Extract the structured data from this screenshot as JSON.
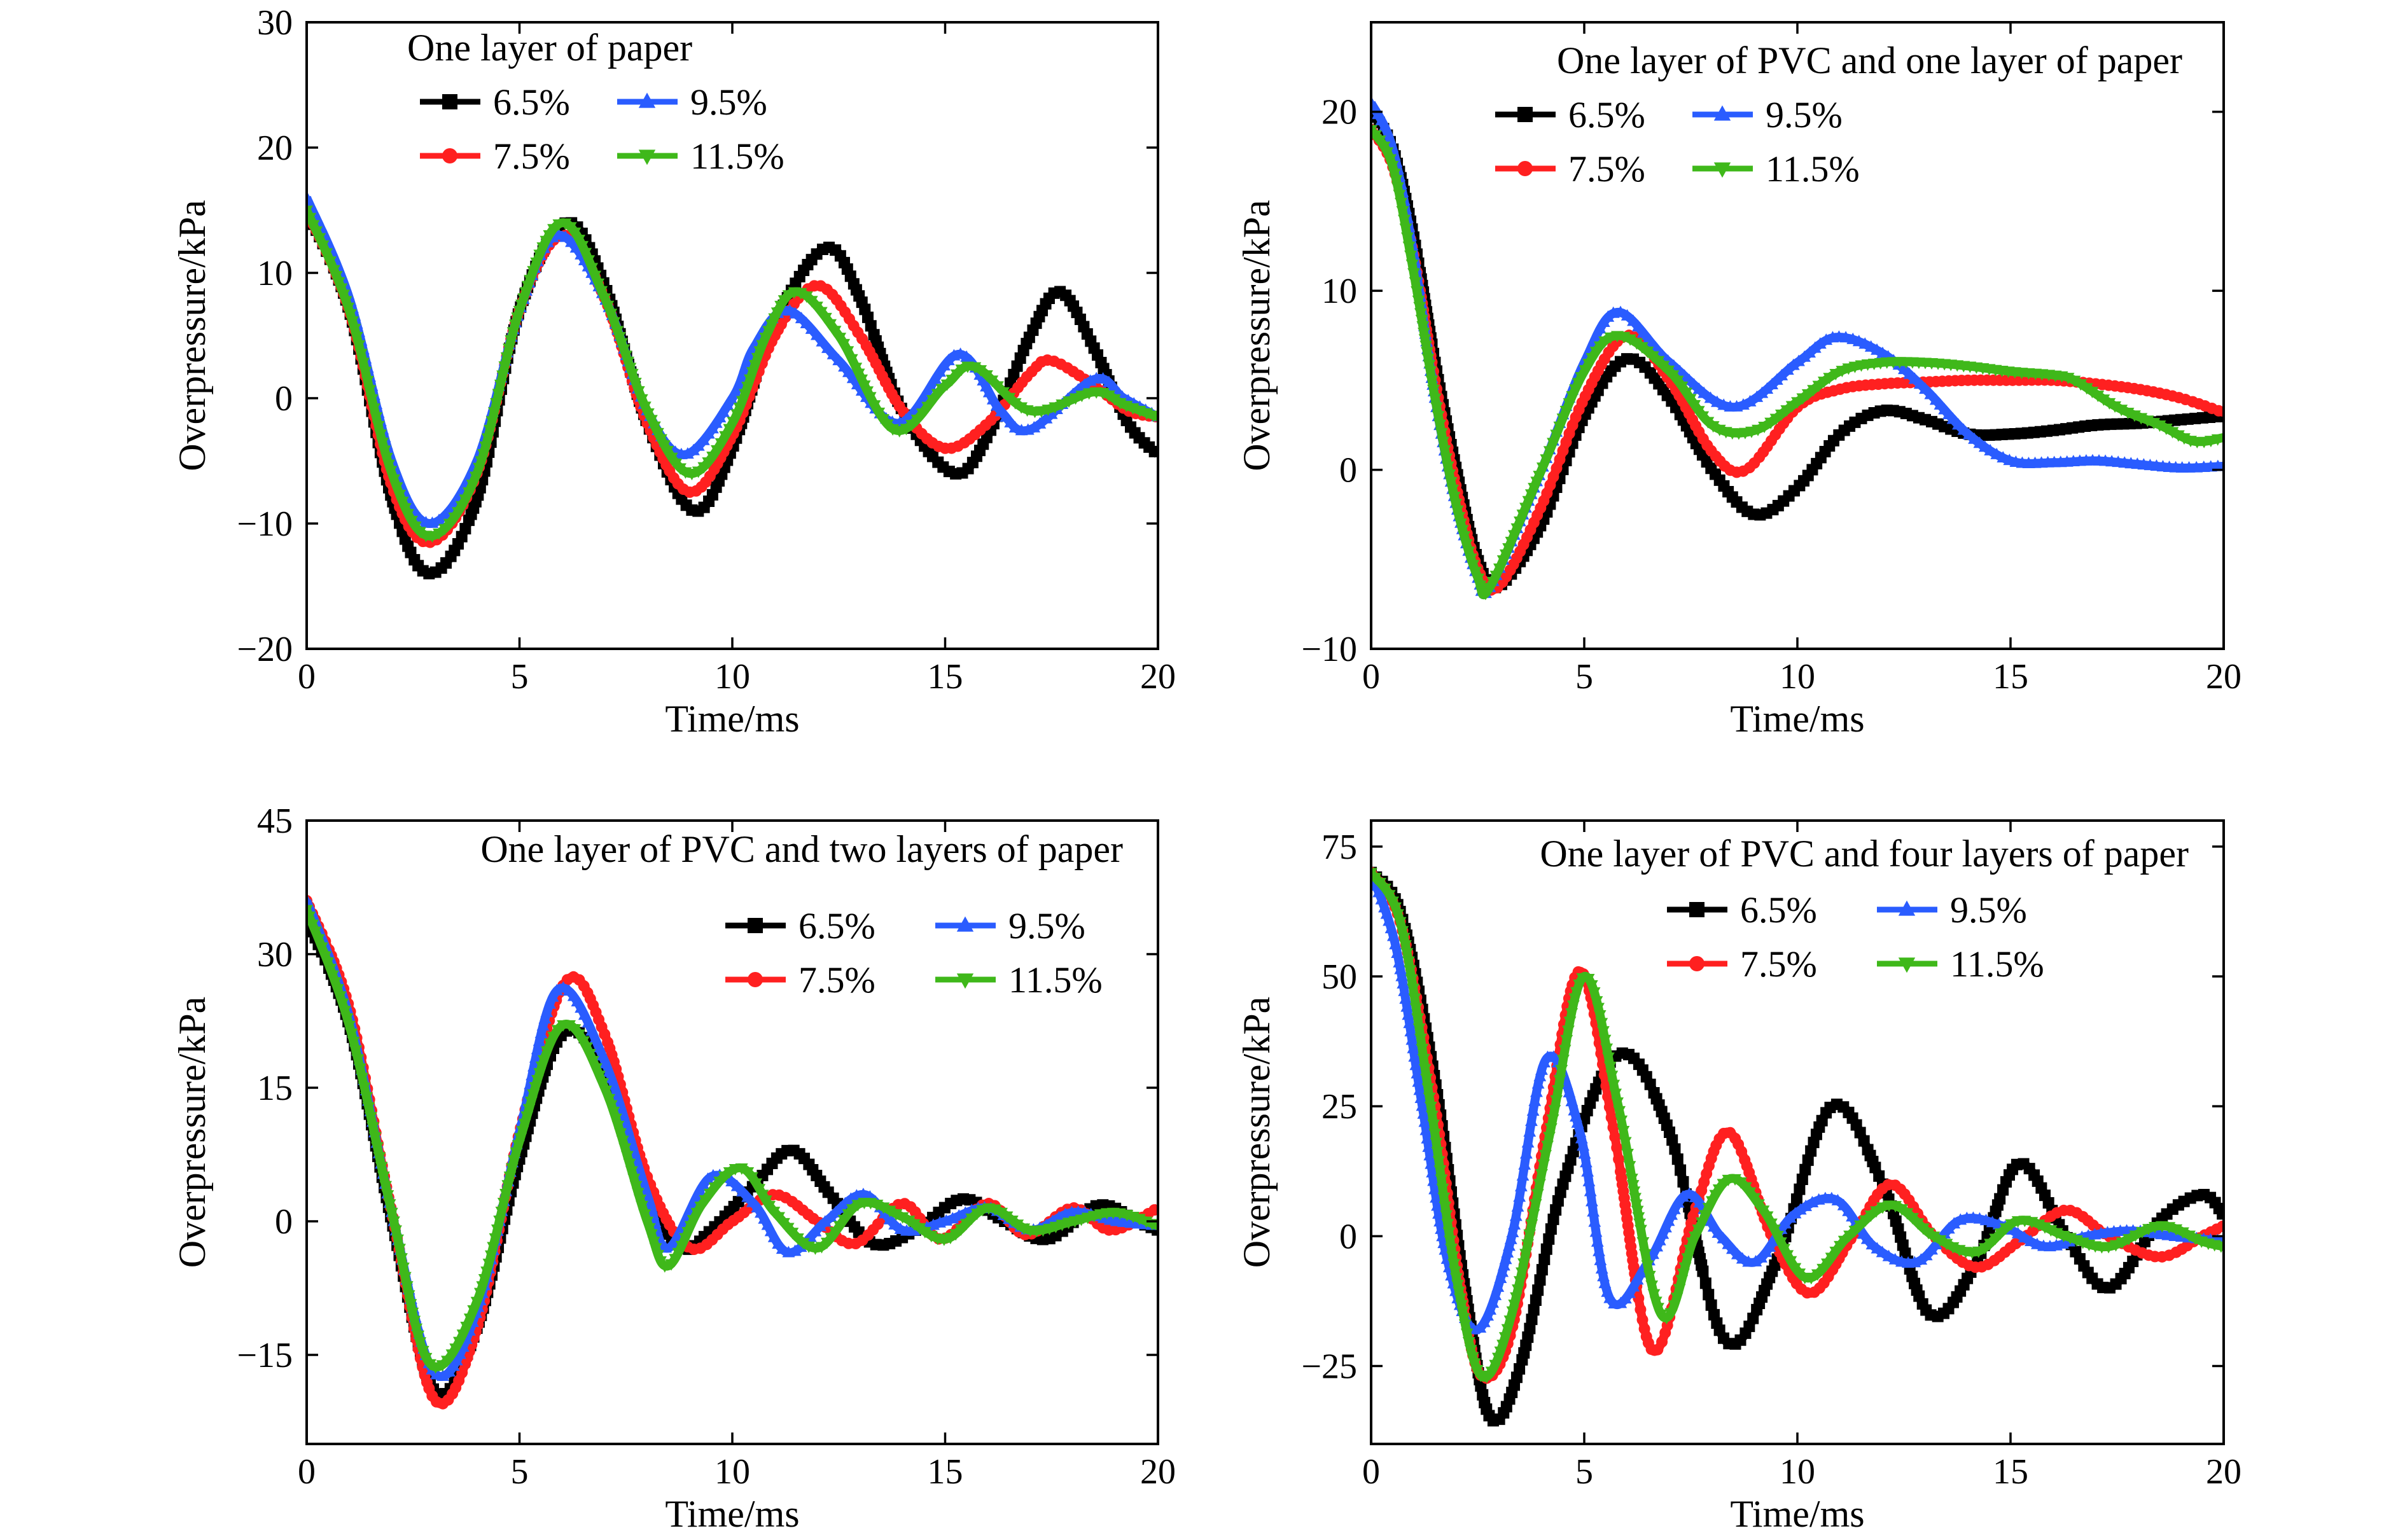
{
  "colors": {
    "6.5%": "#000000",
    "7.5%": "#ff2020",
    "9.5%": "#2a5cff",
    "11.5%": "#3fb81a"
  },
  "chart_data": [
    {
      "type": "line",
      "title": "One layer of paper",
      "xlabel": "Time/ms",
      "ylabel": "Overpressure/kPa",
      "xlim": [
        0,
        20
      ],
      "ylim": [
        -20,
        30
      ],
      "xticks": [
        0,
        5,
        10,
        15,
        20
      ],
      "yticks": [
        -20,
        -10,
        0,
        10,
        20,
        30
      ],
      "legend_position": "top-left",
      "series": [
        {
          "name": "6.5%",
          "marker": "square",
          "x": [
            0,
            1,
            2,
            2.9,
            4,
            5,
            6.1,
            7,
            8,
            9.1,
            10,
            11,
            12.2,
            13,
            14,
            15.2,
            16,
            17,
            17.7,
            18.5,
            19.3,
            20
          ],
          "y": [
            15,
            7,
            -8,
            -14,
            -8,
            7,
            14,
            9,
            -2,
            -9,
            -4,
            6,
            12,
            8,
            -1,
            -6,
            -3,
            5,
            8.5,
            4,
            -2,
            -4.5
          ]
        },
        {
          "name": "7.5%",
          "marker": "circle",
          "x": [
            0,
            1,
            2,
            2.9,
            4,
            5,
            6.0,
            7,
            8,
            9.0,
            10,
            11,
            12.0,
            13,
            14,
            15.0,
            16,
            17,
            17.5,
            18.5,
            19.3,
            20
          ],
          "y": [
            15,
            7,
            -7,
            -11.5,
            -6,
            7,
            13,
            8,
            -2,
            -7.5,
            -3,
            5,
            9,
            5,
            -1,
            -4,
            -2,
            2,
            3,
            1,
            -1,
            -1.5
          ]
        },
        {
          "name": "9.5%",
          "marker": "triangle-up",
          "x": [
            0,
            1,
            2,
            2.9,
            4,
            5,
            5.9,
            7,
            8,
            8.9,
            10,
            10.5,
            11.3,
            12.5,
            13.9,
            15.3,
            16.3,
            17.0,
            18.5,
            19.2,
            20
          ],
          "y": [
            16,
            8,
            -5,
            -10,
            -5,
            7,
            13,
            8,
            -1,
            -4.5,
            0,
            4,
            7,
            3,
            -2,
            3.5,
            -1,
            -2.5,
            1.5,
            0,
            -1.5
          ]
        },
        {
          "name": "11.5%",
          "marker": "triangle-down",
          "x": [
            0,
            1,
            2,
            2.9,
            4,
            5,
            6.0,
            7,
            8,
            9.0,
            10,
            10.8,
            11.5,
            12.5,
            13.8,
            15.0,
            15.7,
            17.0,
            18.5,
            19.2,
            20
          ],
          "y": [
            15,
            7,
            -6,
            -11,
            -6,
            7,
            14,
            8,
            -1,
            -6,
            -2,
            5,
            8.5,
            5,
            -2.5,
            1,
            2.5,
            -1,
            0.5,
            -0.5,
            -1.5
          ]
        }
      ]
    },
    {
      "type": "line",
      "title": "One layer of PVC and one layer of paper",
      "xlabel": "Time/ms",
      "ylabel": "Overpressure/kPa",
      "xlim": [
        0,
        20
      ],
      "ylim": [
        -10,
        25
      ],
      "xticks": [
        0,
        5,
        10,
        15,
        20
      ],
      "yticks": [
        -10,
        0,
        10,
        20
      ],
      "legend_position": "top-right",
      "series": [
        {
          "name": "6.5%",
          "marker": "square",
          "x": [
            0,
            0.5,
            1,
            1.5,
            2,
            2.5,
            3,
            4,
            5,
            6,
            7,
            8,
            9,
            10,
            11,
            12,
            13,
            14,
            15,
            16,
            17,
            18,
            19,
            20
          ],
          "y": [
            20,
            18,
            13,
            6,
            0,
            -5,
            -6.5,
            -3,
            3,
            6.2,
            4,
            0,
            -2.5,
            -1,
            2,
            3.3,
            2.8,
            2,
            2,
            2.2,
            2.5,
            2.6,
            2.8,
            3
          ]
        },
        {
          "name": "7.5%",
          "marker": "circle",
          "x": [
            0,
            0.5,
            1,
            1.5,
            2,
            2.5,
            3,
            4,
            5,
            6,
            7,
            8,
            8.8,
            10,
            11,
            12,
            13,
            14,
            15,
            16,
            17,
            18,
            19,
            20
          ],
          "y": [
            19,
            17,
            12,
            5,
            -1,
            -5.5,
            -6.5,
            -2,
            4,
            7.5,
            5,
            1,
            0,
            3.5,
            4.5,
            4.8,
            4.9,
            5,
            5,
            5,
            4.8,
            4.5,
            4,
            3.2
          ]
        },
        {
          "name": "9.5%",
          "marker": "triangle-up",
          "x": [
            0,
            0.5,
            1,
            1.5,
            2,
            2.5,
            2.8,
            4,
            5,
            5.8,
            7,
            8.5,
            10,
            10.9,
            12,
            13,
            14,
            15,
            16,
            17,
            18,
            19,
            20
          ],
          "y": [
            20.5,
            18,
            12,
            4,
            -2,
            -6,
            -6.5,
            0,
            6,
            8.8,
            6,
            3.5,
            6,
            7.4,
            6.5,
            4.5,
            2,
            0.5,
            0.4,
            0.5,
            0.3,
            0.1,
            0.2
          ]
        },
        {
          "name": "11.5%",
          "marker": "triangle-down",
          "x": [
            0,
            0.5,
            1,
            1.5,
            2,
            2.5,
            2.8,
            4,
            5,
            5.8,
            7,
            8,
            9,
            10,
            11,
            12,
            13,
            14,
            15,
            16,
            16.5,
            17.5,
            18.5,
            19.3,
            20
          ],
          "y": [
            19,
            17,
            11,
            4,
            -2,
            -6,
            -6.5,
            0,
            5.5,
            7.5,
            5.5,
            2.5,
            2.2,
            3.8,
            5.5,
            6,
            6,
            5.8,
            5.5,
            5.3,
            5,
            3.5,
            2.5,
            1.6,
            1.8
          ]
        }
      ]
    },
    {
      "type": "line",
      "title": "One layer of PVC and two layers of paper",
      "xlabel": "Time/ms",
      "ylabel": "Overpressure/kPa",
      "xlim": [
        0,
        20
      ],
      "ylim": [
        -25,
        45
      ],
      "xticks": [
        0,
        5,
        10,
        15,
        20
      ],
      "yticks": [
        -15,
        0,
        15,
        30,
        45
      ],
      "legend_position": "top-right",
      "series": [
        {
          "name": "6.5%",
          "marker": "square",
          "x": [
            0,
            1,
            2,
            3,
            4,
            5,
            6,
            7,
            8,
            8.8,
            9.5,
            10.5,
            11.4,
            12.3,
            13.3,
            14.3,
            15.4,
            16.4,
            17.4,
            18.6,
            19.5,
            20
          ],
          "y": [
            34,
            22,
            0,
            -19,
            -12,
            7,
            21,
            17,
            3,
            -3,
            -1,
            4,
            8,
            3,
            -2.5,
            -1,
            2.5,
            0,
            -2,
            1.8,
            0,
            -1
          ]
        },
        {
          "name": "7.5%",
          "marker": "circle",
          "x": [
            0,
            1,
            2,
            3,
            4,
            5,
            6.1,
            7,
            8,
            9.0,
            10.0,
            11,
            12,
            12.9,
            14,
            14.9,
            16.0,
            16.9,
            18.0,
            18.9,
            20
          ],
          "y": [
            36,
            24,
            1,
            -20,
            -12,
            10,
            27,
            21,
            5,
            -3,
            0,
            3,
            0,
            -2.5,
            2,
            -2,
            2,
            -1.5,
            1.5,
            -1,
            1.5
          ]
        },
        {
          "name": "9.5%",
          "marker": "triangle-up",
          "x": [
            0,
            1,
            2,
            3,
            4,
            5,
            5.9,
            7,
            8,
            8.5,
            9.5,
            10.5,
            11.3,
            12.2,
            13.1,
            14.0,
            15.0,
            16.0,
            17.0,
            18.0,
            19.0,
            20
          ],
          "y": [
            36,
            23,
            1,
            -17,
            -10,
            10,
            26,
            18,
            3,
            -3,
            5,
            2,
            -3.5,
            0,
            3,
            -1,
            0,
            1.5,
            -1,
            1,
            0,
            -0.5
          ]
        },
        {
          "name": "11.5%",
          "marker": "triangle-down",
          "x": [
            0,
            1,
            2,
            2.9,
            4,
            5,
            6.0,
            7,
            8,
            8.5,
            9.3,
            10.2,
            11.0,
            12.0,
            13.0,
            14.0,
            15.0,
            16.0,
            17.0,
            18.0,
            19.0,
            20
          ],
          "y": [
            35,
            22,
            1,
            -16,
            -9,
            9,
            22,
            15,
            0,
            -5,
            2,
            6,
            1,
            -3,
            2,
            0.5,
            -2,
            1.5,
            -1,
            0,
            1,
            -0.5
          ]
        }
      ]
    },
    {
      "type": "line",
      "title": "One layer of PVC and four layers of paper",
      "xlabel": "Time/ms",
      "ylabel": "Overpressure/kPa",
      "xlim": [
        0,
        20
      ],
      "ylim": [
        -40,
        80
      ],
      "xticks": [
        0,
        5,
        10,
        15,
        20
      ],
      "yticks": [
        -25,
        0,
        25,
        50,
        75
      ],
      "legend_position": "top-right",
      "series": [
        {
          "name": "6.5%",
          "marker": "square",
          "x": [
            0,
            0.7,
            1.5,
            2.2,
            2.8,
            3.5,
            4.5,
            5.8,
            7.0,
            8.3,
            9.5,
            10.8,
            12.0,
            13.1,
            14.2,
            15.2,
            16.3,
            17.3,
            18.5,
            19.5,
            20
          ],
          "y": [
            70,
            62,
            30,
            -10,
            -35,
            -25,
            10,
            35,
            20,
            -20,
            -5,
            25,
            10,
            -15,
            -5,
            14,
            0,
            -10,
            3,
            8,
            4
          ]
        },
        {
          "name": "7.5%",
          "marker": "circle",
          "x": [
            0,
            0.7,
            1.5,
            2.1,
            2.6,
            3.3,
            4.1,
            4.9,
            5.7,
            6.6,
            7.6,
            8.4,
            9.4,
            10.3,
            11.3,
            12.2,
            13.2,
            14.2,
            15.2,
            16.3,
            17.3,
            18.5,
            19.5,
            20
          ],
          "y": [
            70,
            60,
            25,
            -10,
            -27,
            -18,
            20,
            51,
            20,
            -22,
            5,
            20,
            0,
            -11,
            0,
            10,
            0,
            -6,
            -1,
            5,
            0,
            -4,
            0,
            2
          ]
        },
        {
          "name": "9.5%",
          "marker": "triangle-up",
          "x": [
            0,
            0.6,
            1.2,
            1.8,
            2.5,
            3.3,
            4.1,
            4.9,
            5.6,
            6.5,
            7.4,
            8.2,
            9.0,
            9.9,
            10.9,
            11.8,
            12.8,
            13.8,
            14.8,
            15.8,
            16.8,
            17.8,
            18.8,
            20
          ],
          "y": [
            70,
            55,
            25,
            -5,
            -18,
            0,
            34,
            20,
            -12,
            -5,
            8,
            0,
            -5,
            4,
            7,
            -2,
            -5,
            3,
            2,
            -2,
            0,
            1,
            0,
            -1
          ]
        },
        {
          "name": "11.5%",
          "marker": "triangle-down",
          "x": [
            0,
            0.7,
            1.4,
            2.0,
            2.6,
            3.3,
            4.2,
            5.0,
            5.8,
            6.8,
            7.6,
            8.4,
            9.2,
            10.2,
            11.2,
            12.2,
            13.2,
            14.2,
            15.2,
            16.3,
            17.3,
            18.5,
            19.5,
            20
          ],
          "y": [
            70,
            60,
            25,
            -8,
            -27,
            -15,
            20,
            50,
            25,
            -15,
            0,
            11,
            5,
            -8,
            0,
            6,
            0,
            -3,
            3,
            0,
            -2,
            2,
            -1,
            -2
          ]
        }
      ]
    }
  ]
}
